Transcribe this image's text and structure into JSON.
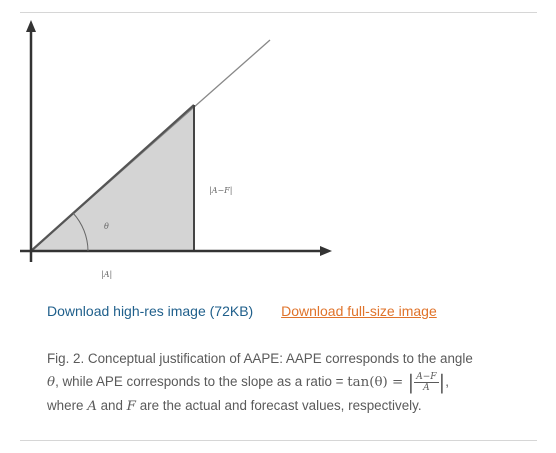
{
  "figure": {
    "label_vertical": "|A−F|",
    "label_horizontal": "|A|",
    "label_angle": "θ"
  },
  "links": {
    "hires": "Download high-res image (72KB)",
    "fullsize": "Download full-size image"
  },
  "caption": {
    "part1": "Fig. 2. Conceptual justification of AAPE: AAPE corresponds to the angle",
    "theta": "θ",
    "part2": ", while APE corresponds to the slope as a ratio = ",
    "tan": "tan",
    "tan_arg": "(θ) = ",
    "frac_num": "A−F",
    "frac_den": "A",
    "part3": ",",
    "part4": "where ",
    "A": "A",
    "and": " and ",
    "F": "F",
    "part5": " are the actual and forecast values, respectively."
  },
  "colors": {
    "link_hires": "#1f5f8b",
    "link_fullsize": "#e0732a",
    "triangle_fill": "#d4d4d4"
  }
}
